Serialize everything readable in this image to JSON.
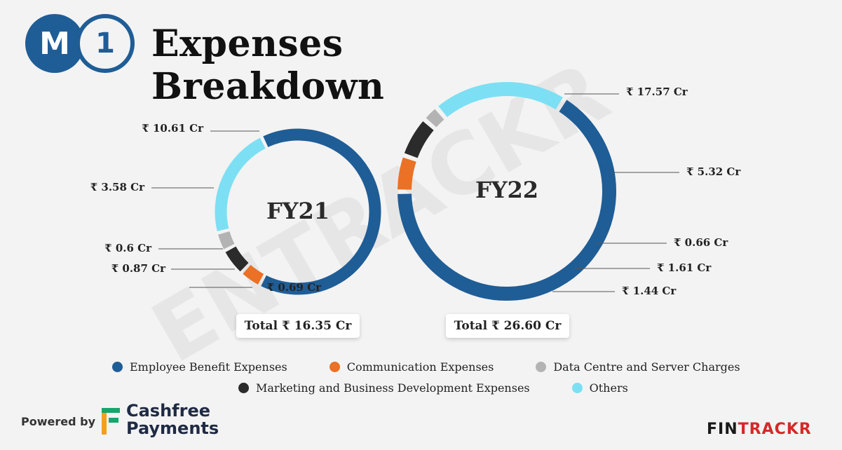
{
  "header": {
    "logo_letter": "M",
    "logo_number": "1",
    "title": "Expenses Breakdown"
  },
  "colors": {
    "Employee Benefit Expenses": "#1f5d96",
    "Communication Expenses": "#ea7125",
    "Data Centre and Server Charges": "#b3b3b3",
    "Marketing and Business Development Expenses": "#2b2b2b",
    "Others": "#7ddff3"
  },
  "chart_data": [
    {
      "type": "pie",
      "title": "FY21",
      "total_label": "Total ₹ 16.35 Cr",
      "unit": "₹ Cr",
      "slices": [
        {
          "name": "Employee Benefit Expenses",
          "value": 10.61,
          "label": "₹ 10.61 Cr"
        },
        {
          "name": "Communication Expenses",
          "value": 0.69,
          "label": "₹ 0.69 Cr"
        },
        {
          "name": "Marketing and Business Development Expenses",
          "value": 0.87,
          "label": "₹ 0.87 Cr"
        },
        {
          "name": "Data Centre and Server Charges",
          "value": 0.6,
          "label": "₹ 0.6 Cr"
        },
        {
          "name": "Others",
          "value": 3.58,
          "label": "₹ 3.58 Cr"
        }
      ]
    },
    {
      "type": "pie",
      "title": "FY22",
      "total_label": "Total ₹ 26.60 Cr",
      "unit": "₹ Cr",
      "slices": [
        {
          "name": "Employee Benefit Expenses",
          "value": 17.57,
          "label": "₹ 17.57 Cr"
        },
        {
          "name": "Communication Expenses",
          "value": 1.44,
          "label": "₹ 1.44 Cr"
        },
        {
          "name": "Marketing and Business Development Expenses",
          "value": 1.61,
          "label": "₹ 1.61 Cr"
        },
        {
          "name": "Data Centre and Server Charges",
          "value": 0.66,
          "label": "₹ 0.66 Cr"
        },
        {
          "name": "Others",
          "value": 5.32,
          "label": "₹ 5.32 Cr"
        }
      ]
    }
  ],
  "legend": {
    "row1": [
      "Employee Benefit Expenses",
      "Communication Expenses",
      "Data Centre and Server Charges"
    ],
    "row2": [
      "Marketing and Business Development Expenses",
      "Others"
    ]
  },
  "footer": {
    "powered_by": "Powered by",
    "sponsor_line1": "Cashfree",
    "sponsor_line2": "Payments",
    "brand_main": "FIN",
    "brand_accent": "TRACKR"
  },
  "watermark": "ENTRACKR"
}
